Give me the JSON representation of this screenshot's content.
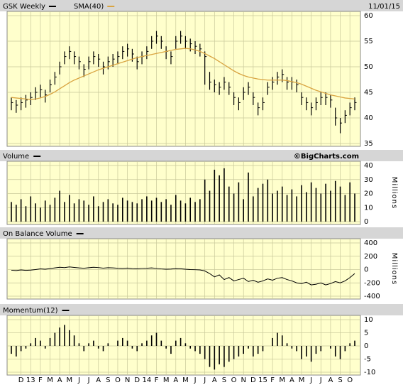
{
  "date": "11/01/15",
  "x_labels": [
    "D",
    "13",
    "F",
    "M",
    "A",
    "M",
    "J",
    "J",
    "A",
    "S",
    "O",
    "N",
    "D",
    "14",
    "F",
    "M",
    "A",
    "M",
    "J",
    "J",
    "A",
    "S",
    "O",
    "N",
    "D",
    "15",
    "F",
    "M",
    "A",
    "M",
    "J",
    "J",
    "A",
    "S",
    "O"
  ],
  "chart_data": [
    {
      "type": "ohlc",
      "series": [
        {
          "name": "GSK Weekly",
          "color": "#000000",
          "high": [
            44,
            43.5,
            44,
            44.5,
            45,
            46,
            46.5,
            45.5,
            47.5,
            49,
            51,
            53,
            54,
            53,
            52,
            50.5,
            52,
            53,
            52.5,
            51,
            52,
            52.5,
            53,
            54,
            54.5,
            53.5,
            52,
            53,
            54,
            56,
            57,
            56,
            54,
            53,
            56,
            57,
            56,
            55.5,
            55,
            54.5,
            53,
            49,
            47.5,
            47,
            48,
            47,
            45,
            44,
            46,
            47,
            45,
            43,
            44,
            47,
            48,
            49,
            49.5,
            48,
            48,
            47.5,
            45,
            44,
            43,
            44,
            45,
            45,
            44.5,
            42,
            40,
            41.5,
            43,
            44
          ],
          "low": [
            41.5,
            41,
            41.5,
            42,
            42.5,
            43.5,
            44,
            43,
            45,
            46.5,
            48.5,
            50.5,
            51.5,
            50.5,
            49.5,
            48,
            49.5,
            50.5,
            50,
            48.5,
            49.5,
            50,
            50.5,
            51.5,
            52,
            51,
            49.5,
            50.5,
            51.5,
            53.5,
            54.5,
            53.5,
            51.5,
            50.5,
            53.5,
            54.5,
            53.5,
            53,
            52.5,
            52,
            46.5,
            45.5,
            45,
            44.5,
            45.5,
            44.5,
            42.5,
            41.5,
            43.5,
            44.5,
            42.5,
            40.5,
            41.5,
            44.5,
            45.5,
            46.5,
            47,
            45.5,
            45.5,
            45,
            42.5,
            41.5,
            40.5,
            41.5,
            42.5,
            42.5,
            42,
            38.5,
            37,
            39,
            40.5,
            41.5
          ],
          "close": [
            43,
            42.5,
            43,
            43.5,
            44,
            45,
            45.5,
            44.5,
            46.5,
            48,
            50,
            52,
            53,
            52,
            51,
            49.5,
            51,
            52,
            51.5,
            50,
            51,
            51.5,
            52,
            53,
            53.5,
            52.5,
            51,
            52,
            53,
            55,
            56,
            55,
            53,
            52,
            55,
            56,
            55,
            54.5,
            54,
            53.5,
            52,
            47,
            46.5,
            46,
            47,
            46,
            44,
            43,
            45,
            46,
            44,
            42,
            43,
            46,
            47,
            48,
            48.5,
            47,
            47,
            46.5,
            44,
            43,
            42,
            43,
            44,
            44,
            43.5,
            40,
            39,
            40.5,
            42,
            43
          ]
        },
        {
          "name": "SMA(40)",
          "color": "#d9a441",
          "values": [
            44,
            43.9,
            43.8,
            43.7,
            43.6,
            43.7,
            43.9,
            44.2,
            44.6,
            45.1,
            45.7,
            46.3,
            46.9,
            47.4,
            47.8,
            48.2,
            48.6,
            49,
            49.4,
            49.7,
            50,
            50.3,
            50.6,
            50.9,
            51.2,
            51.5,
            51.8,
            52,
            52.2,
            52.4,
            52.6,
            52.8,
            53,
            53.2,
            53.4,
            53.5,
            53.6,
            53.5,
            53.3,
            53,
            52.6,
            52.1,
            51.6,
            51,
            50.4,
            49.8,
            49.2,
            48.7,
            48.3,
            48,
            47.8,
            47.6,
            47.5,
            47.4,
            47.4,
            47.4,
            47.4,
            47.3,
            47.1,
            46.9,
            46.6,
            46.2,
            45.8,
            45.4,
            45.1,
            44.8,
            44.5,
            44.3,
            44.1,
            43.9,
            43.8,
            43.7
          ]
        }
      ],
      "ylim": [
        35,
        60
      ],
      "yticks": [
        35,
        40,
        45,
        50,
        55,
        60
      ],
      "grid": true
    },
    {
      "type": "bar",
      "title": "Volume",
      "watermark": "©BigCharts.com",
      "y_label": "Millions",
      "color": "#000000",
      "values": [
        14,
        12,
        16,
        11,
        18,
        13,
        10,
        15,
        12,
        17,
        22,
        14,
        19,
        13,
        16,
        15,
        12,
        18,
        11,
        14,
        16,
        13,
        12,
        17,
        15,
        14,
        13,
        16,
        18,
        15,
        17,
        14,
        16,
        12,
        19,
        15,
        13,
        17,
        14,
        16,
        30,
        22,
        37,
        33,
        38,
        25,
        20,
        28,
        16,
        35,
        18,
        24,
        27,
        30,
        20,
        22,
        25,
        19,
        23,
        18,
        26,
        21,
        28,
        24,
        20,
        27,
        22,
        29,
        25,
        19,
        28,
        20
      ],
      "ylim": [
        0,
        40
      ],
      "yticks": [
        0,
        10,
        20,
        30,
        40
      ],
      "grid": true
    },
    {
      "type": "line",
      "title": "On Balance Volume",
      "y_label": "Millions",
      "color": "#000000",
      "values": [
        -10,
        -15,
        -5,
        -12,
        -8,
        0,
        10,
        5,
        15,
        25,
        35,
        30,
        40,
        32,
        25,
        20,
        28,
        35,
        30,
        22,
        28,
        25,
        20,
        18,
        22,
        15,
        12,
        18,
        20,
        25,
        18,
        10,
        5,
        8,
        15,
        12,
        5,
        0,
        -2,
        -5,
        -20,
        -60,
        -110,
        -80,
        -150,
        -120,
        -170,
        -150,
        -130,
        -180,
        -160,
        -190,
        -170,
        -140,
        -160,
        -130,
        -120,
        -150,
        -170,
        -200,
        -210,
        -190,
        -230,
        -220,
        -200,
        -230,
        -210,
        -180,
        -200,
        -170,
        -120,
        -60
      ],
      "ylim": [
        -400,
        400
      ],
      "yticks": [
        -400,
        -200,
        0,
        200,
        400
      ],
      "grid": true
    },
    {
      "type": "bar",
      "title": "Momentum(12)",
      "color": "#000000",
      "values": [
        -3,
        -4,
        -2,
        -1,
        1,
        3,
        2,
        -1,
        3,
        5,
        7,
        8,
        6,
        4,
        1,
        -2,
        1,
        2,
        -1,
        -2,
        1,
        0,
        2,
        3,
        2,
        -1,
        -2,
        1,
        2,
        4,
        5,
        2,
        -1,
        -3,
        2,
        3,
        1,
        -1,
        -2,
        -3,
        -5,
        -8,
        -9,
        -7,
        -8,
        -6,
        -5,
        -4,
        -3,
        -1,
        -4,
        -3,
        -2,
        0,
        3,
        5,
        4,
        1,
        -1,
        -2,
        -5,
        -4,
        -6,
        -3,
        -2,
        0,
        -1,
        -4,
        -5,
        -2,
        1,
        2
      ],
      "ylim": [
        -10,
        10
      ],
      "yticks": [
        -10,
        -5,
        0,
        5,
        10
      ],
      "grid": true
    }
  ]
}
